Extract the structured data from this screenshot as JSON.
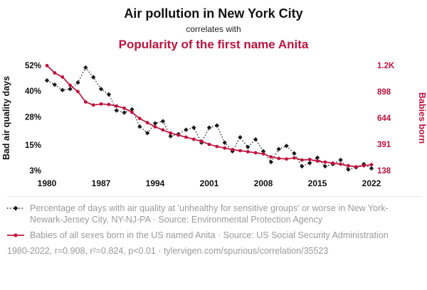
{
  "header": {
    "title": "Air pollution in New York City",
    "subtitle": "correlates with",
    "title2": "Popularity of the first name Anita"
  },
  "colors": {
    "accent_red": "#be123c",
    "series_black": "#1a1a1a",
    "caption_gray": "#9a9a9a"
  },
  "chart_data": {
    "type": "line",
    "title": "Air pollution in New York City correlates with Popularity of the first name Anita",
    "x": [
      1980,
      1981,
      1982,
      1983,
      1984,
      1985,
      1986,
      1987,
      1988,
      1989,
      1990,
      1991,
      1992,
      1993,
      1994,
      1995,
      1996,
      1997,
      1998,
      1999,
      2000,
      2001,
      2002,
      2003,
      2004,
      2005,
      2006,
      2007,
      2008,
      2009,
      2010,
      2011,
      2012,
      2013,
      2014,
      2015,
      2016,
      2017,
      2018,
      2019,
      2020,
      2021,
      2022
    ],
    "x_ticks": [
      1980,
      1987,
      1994,
      2001,
      2008,
      2015,
      2022
    ],
    "left_axis": {
      "label": "Bad air quality days",
      "min": 3,
      "max": 52,
      "ticks": [
        52,
        40,
        28,
        15,
        3
      ],
      "tick_labels": [
        "52%",
        "40%",
        "28%",
        "15%",
        "3%"
      ]
    },
    "right_axis": {
      "label": "Babies born",
      "min": 138,
      "max": 1152,
      "ticks": [
        1152,
        898,
        644,
        391,
        138
      ],
      "tick_labels": [
        "1.2K",
        "898",
        "644",
        "391",
        "138"
      ]
    },
    "grid": false,
    "series": [
      {
        "name": "Percentage of days with bad air quality in New York-Newark-Jersey City",
        "axis": "left",
        "color": "#1a1a1a",
        "line": "dotted",
        "marker": "diamond",
        "values": [
          45,
          43,
          40.5,
          41,
          44,
          51,
          46.5,
          41,
          38.5,
          31,
          30,
          31.5,
          23.5,
          20.5,
          25,
          26,
          19,
          20,
          22,
          23,
          16,
          23,
          24,
          16,
          12,
          18.5,
          14,
          17.5,
          12,
          7,
          13,
          14.5,
          11,
          5,
          6.5,
          9,
          5,
          6,
          8,
          3.5,
          4.5,
          6,
          4
        ]
      },
      {
        "name": "Babies of all sexes born in the US named Anita",
        "axis": "right",
        "color": "#be123c",
        "line": "solid",
        "marker": "circle",
        "values": [
          1150,
          1080,
          1040,
          960,
          900,
          800,
          770,
          780,
          775,
          760,
          740,
          700,
          640,
          600,
          560,
          530,
          500,
          480,
          460,
          440,
          420,
          390,
          370,
          355,
          340,
          330,
          320,
          310,
          300,
          270,
          255,
          250,
          260,
          240,
          245,
          230,
          220,
          210,
          200,
          185,
          175,
          185,
          195
        ]
      }
    ]
  },
  "legend": [
    {
      "text": "Percentage of days with air quality at 'unhealthy for sensitive groups' or worse in New York-Newark-Jersey City, NY-NJ-PA · Source: Environmental Protection Agency"
    },
    {
      "text": "Babies of all sexes born in the US named Anita · Source: US Social Security Administration"
    }
  ],
  "footer": {
    "text": "1980-2022, r=0.908, r²=0.824, p<0.01 · tylervigen.com/spurious/correlation/35523"
  }
}
